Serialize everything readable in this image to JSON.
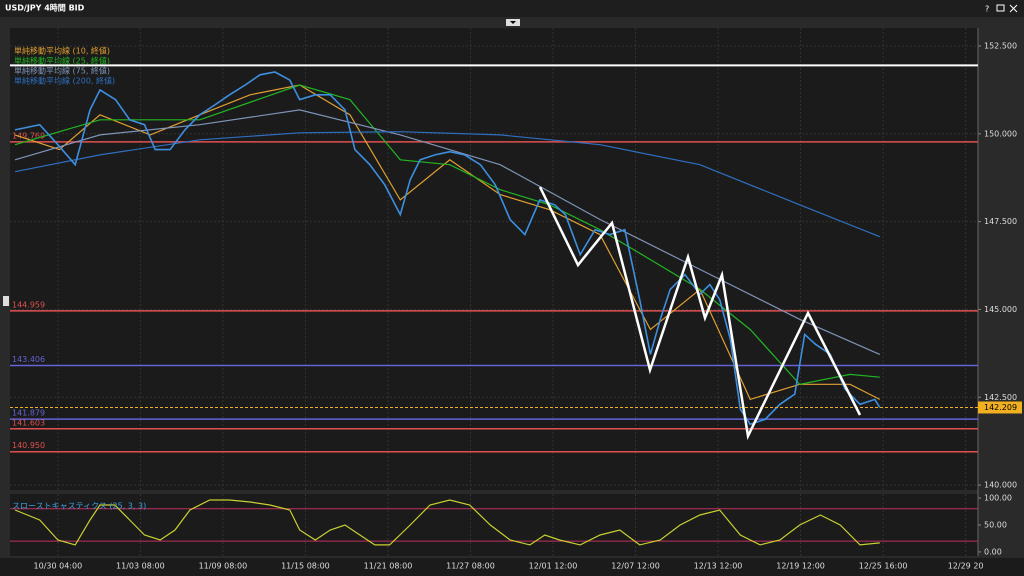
{
  "window": {
    "title": "USD/JPY 4時間 BID",
    "help": "?"
  },
  "chart_data": [
    {
      "type": "line",
      "xlim": [
        -0.58,
        11.15
      ],
      "ylim": [
        139.86,
        153.24
      ],
      "xticks": [
        {
          "value": 0,
          "label": "10/30 04:00"
        },
        {
          "value": 1,
          "label": "11/03 08:00"
        },
        {
          "value": 2,
          "label": "11/09 08:00"
        },
        {
          "value": 3,
          "label": "11/15 08:00"
        },
        {
          "value": 4,
          "label": "11/21 08:00"
        },
        {
          "value": 5,
          "label": "11/27 08:00"
        },
        {
          "value": 6,
          "label": "12/01 12:00"
        },
        {
          "value": 7,
          "label": "12/07 12:00"
        },
        {
          "value": 8,
          "label": "12/13 12:00"
        },
        {
          "value": 9,
          "label": "12/19 12:00"
        },
        {
          "value": 10,
          "label": "12/25 16:00"
        },
        {
          "value": 11,
          "label": "12/29 20"
        }
      ],
      "yticks": [
        {
          "value": 152.5,
          "label": "152.500"
        },
        {
          "value": 150,
          "label": "150.000"
        },
        {
          "value": 147.5,
          "label": "147.500"
        },
        {
          "value": 145,
          "label": "145.000"
        },
        {
          "value": 142.5,
          "label": "142.500"
        },
        {
          "value": 140,
          "label": "140.000"
        }
      ],
      "grid": true,
      "price": {
        "color": "#3d8fe0",
        "x": [
          -0.52,
          -0.22,
          0,
          0.21,
          0.39,
          0.51,
          0.7,
          0.87,
          1.05,
          1.18,
          1.36,
          1.54,
          1.72,
          1.9,
          2.08,
          2.27,
          2.45,
          2.63,
          2.81,
          2.93,
          3.12,
          3.3,
          3.48,
          3.6,
          3.78,
          3.96,
          4.15,
          4.27,
          4.39,
          4.57,
          4.75,
          4.93,
          5.12,
          5.3,
          5.48,
          5.66,
          5.84,
          6.02,
          6.15,
          6.33,
          6.51,
          6.69,
          6.87,
          7.05,
          7.18,
          7.3,
          7.42,
          7.6,
          7.78,
          7.9,
          8.02,
          8.15,
          8.27,
          8.39,
          8.57,
          8.75,
          8.93,
          9.05,
          9.18,
          9.36,
          9.54,
          9.72,
          9.9,
          9.96
        ],
        "values": [
          150.11,
          150.26,
          149.69,
          149.12,
          150.68,
          151.25,
          150.97,
          150.4,
          150.26,
          149.55,
          149.55,
          150.11,
          150.54,
          150.82,
          151.11,
          151.39,
          151.68,
          151.76,
          151.53,
          150.97,
          151.11,
          151.11,
          150.68,
          149.55,
          149.12,
          148.55,
          147.7,
          148.69,
          149.26,
          149.4,
          149.49,
          149.4,
          149.12,
          148.55,
          147.56,
          147.13,
          148.12,
          147.98,
          147.7,
          146.56,
          147.27,
          147.13,
          147.27,
          145.28,
          143.72,
          144.72,
          145.57,
          145.99,
          145.43,
          145.71,
          145.28,
          144.15,
          142.16,
          141.73,
          141.87,
          142.3,
          142.59,
          144.29,
          144.01,
          143.72,
          142.73,
          142.3,
          142.44,
          142.21
        ]
      },
      "series": [
        {
          "name": "単純移動平均線 (10, 終値)",
          "color": "#e0a030",
          "x": [
            -0.52,
            0.02,
            0.51,
            1.12,
            1.72,
            2.33,
            2.93,
            3.54,
            4.15,
            4.75,
            5.36,
            5.96,
            6.57,
            7.18,
            7.78,
            8.39,
            8.99,
            9.6,
            9.96
          ],
          "values": [
            149.97,
            149.55,
            150.54,
            149.97,
            150.54,
            151.11,
            151.39,
            150.54,
            148.12,
            149.26,
            148.27,
            147.84,
            147.13,
            144.43,
            145.57,
            142.44,
            142.87,
            142.87,
            142.44
          ]
        },
        {
          "name": "単純移動平均線 (25, 終値)",
          "color": "#22b522",
          "x": [
            -0.52,
            0.51,
            1.72,
            2.93,
            3.54,
            4.15,
            4.75,
            5.36,
            5.96,
            6.57,
            7.18,
            7.78,
            8.39,
            8.99,
            9.6,
            9.96
          ],
          "values": [
            149.69,
            150.4,
            150.4,
            151.39,
            150.97,
            149.26,
            149.12,
            148.41,
            147.98,
            147.27,
            146.42,
            145.57,
            144.43,
            142.87,
            143.15,
            143.07
          ]
        },
        {
          "name": "単純移動平均線 (75, 終値)",
          "color": "#7f93b8",
          "x": [
            -0.52,
            0.51,
            1.72,
            2.93,
            4.15,
            5.36,
            6.57,
            7.78,
            8.99,
            9.96
          ],
          "values": [
            149.26,
            149.97,
            150.26,
            150.68,
            149.97,
            149.12,
            147.56,
            146.14,
            144.72,
            143.72
          ]
        },
        {
          "name": "単純移動平均線 (200, 終値)",
          "color": "#2f6fc0",
          "x": [
            -0.52,
            0.51,
            1.72,
            2.93,
            4.15,
            5.36,
            6.57,
            7.78,
            8.99,
            9.96
          ],
          "values": [
            148.92,
            149.4,
            149.83,
            150.03,
            150.06,
            149.97,
            149.69,
            149.12,
            147.98,
            147.07
          ]
        }
      ],
      "levels": [
        {
          "value": 151.95,
          "color": "#ffffff"
        },
        {
          "value": 149.769,
          "label": "149.769",
          "color": "#e05050"
        },
        {
          "value": 144.959,
          "label": "144.959",
          "color": "#e05050"
        },
        {
          "value": 143.406,
          "label": "143.406",
          "color": "#6464d8"
        },
        {
          "value": 141.879,
          "label": "141.879",
          "color": "#6464d8"
        },
        {
          "value": 141.603,
          "label": "141.603",
          "color": "#e05050"
        },
        {
          "value": 140.95,
          "label": "140.950",
          "color": "#e05050"
        }
      ],
      "current": {
        "value": 142.209,
        "color": "#f0b020"
      }
    },
    {
      "type": "line",
      "title": "スローストキャスティクス (25, 3, 3)",
      "ylim": [
        -7.5,
        105.6
      ],
      "yticks": [
        {
          "value": 100,
          "label": "100.00"
        },
        {
          "value": 50,
          "label": "50.00"
        },
        {
          "value": 0,
          "label": "0.00"
        }
      ],
      "levels": [
        80,
        20
      ],
      "level_color": "#c03060",
      "series": [
        {
          "color": "#c8d030",
          "x": [
            -0.52,
            -0.22,
            0,
            0.21,
            0.39,
            0.51,
            0.69,
            0.87,
            1.05,
            1.24,
            1.42,
            1.6,
            1.84,
            2.08,
            2.33,
            2.57,
            2.81,
            2.93,
            3.12,
            3.3,
            3.48,
            3.66,
            3.84,
            4.02,
            4.27,
            4.51,
            4.75,
            4.99,
            5.24,
            5.48,
            5.72,
            5.9,
            6.08,
            6.33,
            6.57,
            6.81,
            7.05,
            7.3,
            7.54,
            7.78,
            8.02,
            8.27,
            8.51,
            8.75,
            8.99,
            9.24,
            9.48,
            9.72,
            9.96
          ],
          "values": [
            77.8,
            59.3,
            22.2,
            13.0,
            59.3,
            87.0,
            87.0,
            59.3,
            31.5,
            22.2,
            40.7,
            77.8,
            96.3,
            96.3,
            92.6,
            87.0,
            77.8,
            40.7,
            22.2,
            40.7,
            50.0,
            31.5,
            13.0,
            13.0,
            50.0,
            87.0,
            96.3,
            87.0,
            50.0,
            22.2,
            13.0,
            31.5,
            22.2,
            13.0,
            31.5,
            40.7,
            13.0,
            22.2,
            50.0,
            68.5,
            77.8,
            31.5,
            13.0,
            22.2,
            50.0,
            68.5,
            50.0,
            13.0,
            16.7
          ]
        }
      ]
    }
  ]
}
